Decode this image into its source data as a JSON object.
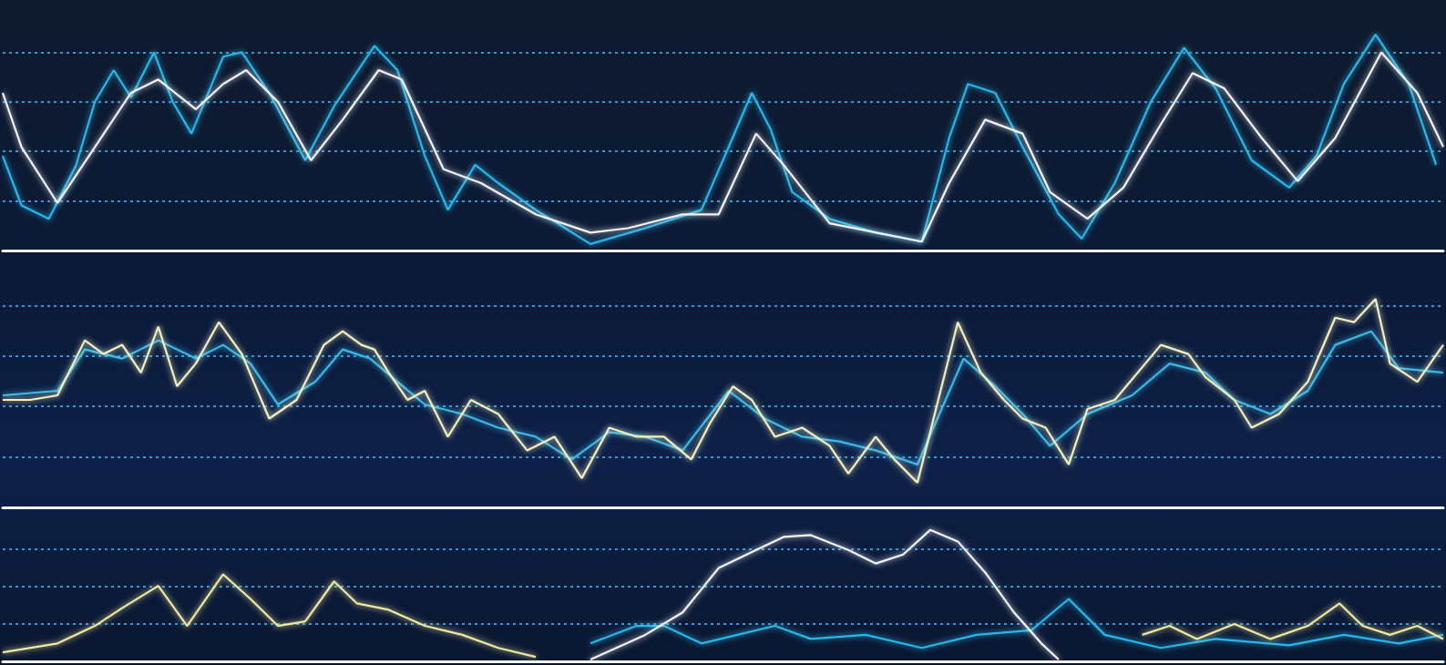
{
  "chart_data": [
    {
      "type": "line",
      "xlim": [
        0,
        100
      ],
      "xticks": [],
      "ylim": [
        0,
        5
      ],
      "yticks": [
        1,
        2,
        3,
        4
      ],
      "grid": true,
      "tick_labels": false,
      "series": [
        {
          "color": "#29b6e8",
          "x": [
            0,
            1.3,
            3.2,
            5.1,
            6.4,
            7.7,
            8.9,
            10.5,
            11.8,
            13.1,
            15.3,
            16.6,
            18.5,
            21.0,
            23.0,
            25.8,
            27.4,
            29.3,
            30.9,
            32.8,
            34.4,
            37.0,
            40.8,
            44.6,
            48.5,
            50.4,
            52.0,
            53.3,
            54.8,
            57.4,
            60.6,
            63.8,
            65.7,
            67.0,
            68.9,
            70.8,
            73.3,
            74.9,
            77.2,
            79.7,
            82.0,
            84.2,
            86.7,
            89.3,
            91.2,
            93.1,
            95.3,
            97.6,
            99.5
          ],
          "values": [
            1.91,
            0.91,
            0.64,
            1.73,
            3.0,
            3.64,
            3.09,
            4.0,
            3.0,
            2.36,
            3.91,
            4.0,
            3.18,
            1.82,
            2.91,
            4.13,
            3.64,
            1.91,
            0.82,
            1.73,
            1.36,
            0.82,
            0.13,
            0.45,
            0.82,
            2.09,
            3.18,
            2.45,
            1.18,
            0.64,
            0.36,
            0.18,
            2.27,
            3.36,
            3.18,
            2.09,
            0.73,
            0.24,
            1.36,
            3.0,
            4.09,
            3.27,
            1.82,
            1.27,
            1.91,
            3.36,
            4.36,
            3.36,
            1.73
          ]
        },
        {
          "color": "#f2f4f8",
          "x": [
            0,
            1.3,
            3.8,
            6.4,
            8.9,
            10.8,
            13.4,
            15.3,
            16.9,
            19.1,
            21.4,
            23.6,
            26.1,
            27.7,
            30.6,
            33.2,
            37.0,
            40.8,
            43.4,
            47.2,
            49.7,
            52.3,
            54.2,
            57.4,
            63.8,
            65.7,
            68.2,
            70.8,
            72.7,
            75.3,
            77.8,
            80.4,
            82.6,
            84.8,
            87.4,
            89.9,
            92.5,
            95.7,
            98.2,
            100
          ],
          "values": [
            3.18,
            2.09,
            0.96,
            2.09,
            3.18,
            3.45,
            2.85,
            3.36,
            3.64,
            3.0,
            1.82,
            2.64,
            3.64,
            3.45,
            1.64,
            1.36,
            0.73,
            0.36,
            0.45,
            0.73,
            0.73,
            2.36,
            1.73,
            0.55,
            0.18,
            1.36,
            2.64,
            2.36,
            1.18,
            0.64,
            1.27,
            2.55,
            3.58,
            3.27,
            2.27,
            1.4,
            2.27,
            4.0,
            3.18,
            2.09
          ]
        }
      ]
    },
    {
      "type": "line",
      "xlim": [
        0,
        100
      ],
      "xticks": [],
      "ylim": [
        0,
        5
      ],
      "yticks": [
        1,
        2,
        3,
        4
      ],
      "grid": true,
      "tick_labels": false,
      "series": [
        {
          "color": "#3cb8e6",
          "x": [
            0,
            3.8,
            5.7,
            8.3,
            10.8,
            13.4,
            15.3,
            17.2,
            19.1,
            21.7,
            23.6,
            25.5,
            27.4,
            29.3,
            31.9,
            34.4,
            37.0,
            39.5,
            42.1,
            44.6,
            47.2,
            50.4,
            52.9,
            55.5,
            58.0,
            60.6,
            63.5,
            66.7,
            68.9,
            70.8,
            72.7,
            75.3,
            78.4,
            81.0,
            83.5,
            85.5,
            88.0,
            90.6,
            92.5,
            95.0,
            96.9,
            100
          ],
          "values": [
            2.22,
            2.31,
            3.13,
            2.95,
            3.31,
            2.95,
            3.22,
            2.85,
            2.04,
            2.49,
            3.13,
            2.95,
            2.49,
            2.04,
            1.85,
            1.58,
            1.4,
            0.95,
            1.49,
            1.4,
            1.13,
            2.31,
            1.76,
            1.4,
            1.31,
            1.13,
            0.85,
            2.95,
            2.4,
            1.85,
            1.22,
            1.85,
            2.22,
            2.85,
            2.67,
            2.13,
            1.85,
            2.31,
            3.22,
            3.49,
            2.76,
            2.67
          ]
        },
        {
          "color": "#f3efc0",
          "x": [
            0,
            1.9,
            3.8,
            5.7,
            7.0,
            8.3,
            9.6,
            10.8,
            12.1,
            13.4,
            15.0,
            16.6,
            18.5,
            20.4,
            22.3,
            23.6,
            24.9,
            25.8,
            26.8,
            28.1,
            29.3,
            30.9,
            32.5,
            34.4,
            36.4,
            38.3,
            40.2,
            42.1,
            44.0,
            45.9,
            47.8,
            49.1,
            50.7,
            52.0,
            53.6,
            55.5,
            57.4,
            58.7,
            60.6,
            61.9,
            63.5,
            66.3,
            67.9,
            69.5,
            70.8,
            72.4,
            74.0,
            75.3,
            77.2,
            80.4,
            82.3,
            83.5,
            85.5,
            86.7,
            88.6,
            90.6,
            92.5,
            93.8,
            95.3,
            96.3,
            98.2,
            100
          ],
          "values": [
            2.13,
            2.13,
            2.22,
            3.31,
            3.04,
            3.22,
            2.67,
            3.58,
            2.4,
            2.85,
            3.67,
            3.04,
            1.76,
            2.13,
            3.22,
            3.49,
            3.22,
            3.13,
            2.67,
            2.13,
            2.31,
            1.4,
            2.13,
            1.85,
            1.13,
            1.4,
            0.58,
            1.58,
            1.4,
            1.4,
            0.95,
            1.67,
            2.4,
            2.13,
            1.4,
            1.58,
            1.22,
            0.67,
            1.4,
            0.95,
            0.49,
            3.67,
            2.67,
            2.13,
            1.76,
            1.58,
            0.85,
            1.95,
            2.13,
            3.22,
            3.04,
            2.58,
            2.13,
            1.58,
            1.85,
            2.49,
            3.76,
            3.67,
            4.13,
            2.85,
            2.49,
            3.22
          ]
        }
      ]
    },
    {
      "type": "line",
      "xlim": [
        0,
        100
      ],
      "xticks": [],
      "ylim": [
        0,
        4
      ],
      "yticks": [
        1,
        2,
        3
      ],
      "grid": true,
      "tick_labels": false,
      "series": [
        {
          "color": "#29b6e8",
          "x": [
            40.8,
            44.0,
            45.9,
            48.5,
            51.0,
            53.6,
            56.1,
            59.9,
            63.8,
            67.6,
            71.4,
            74.0,
            76.5,
            80.4,
            84.2,
            89.3,
            93.1,
            96.9,
            100
          ],
          "values": [
            0.48,
            0.95,
            0.95,
            0.48,
            0.71,
            0.95,
            0.6,
            0.71,
            0.36,
            0.71,
            0.83,
            1.67,
            0.71,
            0.36,
            0.6,
            0.43,
            0.71,
            0.48,
            0.71
          ]
        },
        {
          "color": "#efe9a0",
          "x": [
            0,
            3.8,
            6.4,
            8.3,
            10.8,
            12.8,
            15.3,
            17.2,
            19.1,
            21.0,
            23.0,
            24.6,
            26.8,
            29.3,
            31.9,
            34.4,
            37.0,
            50,
            79.1,
            81.0,
            82.9,
            85.5,
            88.0,
            90.6,
            92.8,
            94.4,
            96.3,
            98.2,
            100
          ],
          "values": [
            0.24,
            0.48,
            0.95,
            1.43,
            2.02,
            0.95,
            2.33,
            1.67,
            0.95,
            1.07,
            2.14,
            1.55,
            1.38,
            0.95,
            0.71,
            0.36,
            0.12,
            null,
            0.71,
            0.95,
            0.6,
            1.0,
            0.6,
            0.95,
            1.55,
            0.95,
            0.71,
            0.95,
            0.6
          ]
        },
        {
          "color": "#f2f4f8",
          "x": [
            40.8,
            44.6,
            47.2,
            49.7,
            52.3,
            54.2,
            56.1,
            58.7,
            60.6,
            62.5,
            64.4,
            66.3,
            68.2,
            70.2,
            72.1,
            73.3
          ],
          "values": [
            0.05,
            0.71,
            1.31,
            2.5,
            2.98,
            3.33,
            3.38,
            2.98,
            2.62,
            2.86,
            3.52,
            3.21,
            2.38,
            1.31,
            0.48,
            0.05
          ]
        }
      ]
    }
  ]
}
